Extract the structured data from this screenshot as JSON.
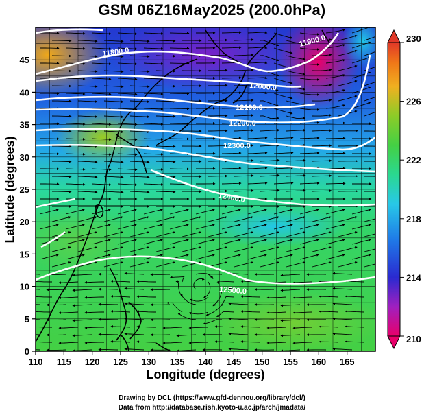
{
  "title": "GSM 06Z16May2025 (200.0hPa)",
  "x_axis": {
    "label": "Longitude (degrees)",
    "range": [
      110,
      170
    ],
    "ticks": [
      110,
      115,
      120,
      125,
      130,
      135,
      140,
      145,
      150,
      155,
      160,
      165
    ]
  },
  "y_axis": {
    "label": "Latitude  (degrees)",
    "range": [
      0,
      50
    ],
    "ticks": [
      0,
      5,
      10,
      15,
      20,
      25,
      30,
      35,
      40,
      45
    ]
  },
  "colorbar": {
    "ticks": [
      230,
      226,
      222,
      218,
      214,
      210
    ],
    "range": [
      210,
      230
    ],
    "colors": [
      "#e8006a",
      "#a020c0",
      "#2a2ad0",
      "#1f7be8",
      "#28c8e8",
      "#2ad890",
      "#44d044",
      "#8ccc28",
      "#f0b020",
      "#f07818",
      "#e03828"
    ]
  },
  "contours": {
    "color": "#ffffff",
    "labels": [
      "11800.0",
      "11900.0",
      "12000.0",
      "12100.0",
      "12200.0",
      "12300.0",
      "12400.0",
      "12500.0"
    ]
  },
  "background_field": {
    "description_colors": {
      "cold": "#e8006a",
      "mid": "#2ad890",
      "warm": "#f0b020"
    }
  },
  "credits": {
    "line1": "Drawing by DCL (https://www.gfd-dennou.org/library/dcl/)",
    "line2": "Data from http://database.rish.kyoto-u.ac.jp/arch/jmadata/"
  }
}
